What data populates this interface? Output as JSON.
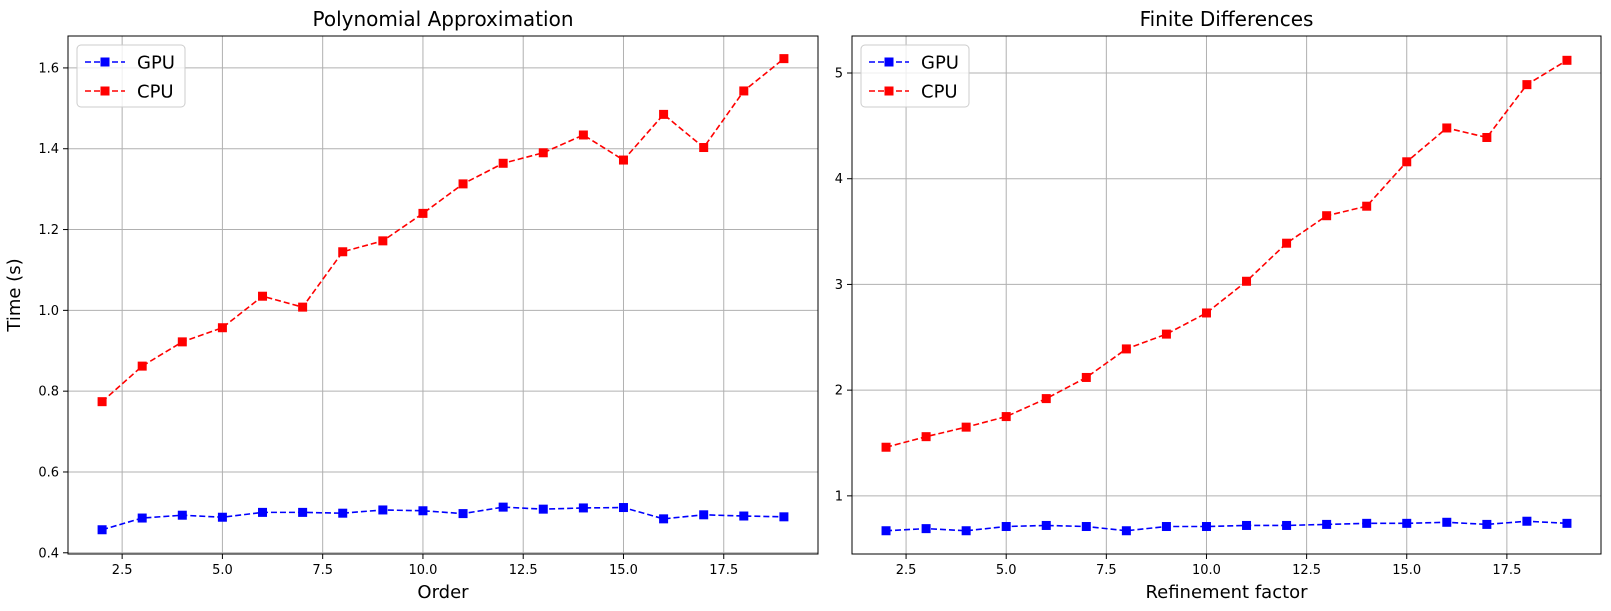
{
  "chart_data": [
    {
      "type": "line",
      "title": "Polynomial Approximation",
      "xlabel": "Order",
      "ylabel": "Time (s)",
      "xlim": [
        1.15,
        19.85
      ],
      "ylim": [
        0.397,
        1.679
      ],
      "xticks": [
        2.5,
        5.0,
        7.5,
        10.0,
        12.5,
        15.0,
        17.5
      ],
      "xtick_labels": [
        "2.5",
        "5.0",
        "7.5",
        "10.0",
        "12.5",
        "15.0",
        "17.5"
      ],
      "yticks": [
        0.4,
        0.6,
        0.8,
        1.0,
        1.2,
        1.4,
        1.6
      ],
      "ytick_labels": [
        "0.4",
        "0.6",
        "0.8",
        "1.0",
        "1.2",
        "1.4",
        "1.6"
      ],
      "grid": true,
      "legend_position": "top-left",
      "x": [
        2,
        3,
        4,
        5,
        6,
        7,
        8,
        9,
        10,
        11,
        12,
        13,
        14,
        15,
        16,
        17,
        18,
        19
      ],
      "series": [
        {
          "name": "GPU",
          "color": "#0000ff",
          "marker": "square",
          "linestyle": "dashed",
          "values": [
            0.457,
            0.486,
            0.493,
            0.488,
            0.5,
            0.5,
            0.498,
            0.506,
            0.504,
            0.497,
            0.513,
            0.508,
            0.511,
            0.512,
            0.484,
            0.494,
            0.491,
            0.489
          ]
        },
        {
          "name": "CPU",
          "color": "#ff0000",
          "marker": "square",
          "linestyle": "dashed",
          "values": [
            0.774,
            0.862,
            0.922,
            0.957,
            1.035,
            1.008,
            1.145,
            1.172,
            1.24,
            1.313,
            1.364,
            1.39,
            1.434,
            1.372,
            1.485,
            1.403,
            1.543,
            1.623
          ]
        }
      ]
    },
    {
      "type": "line",
      "title": "Finite Differences",
      "xlabel": "Refinement factor",
      "ylabel": "",
      "xlim": [
        1.15,
        19.85
      ],
      "ylim": [
        0.45,
        5.35
      ],
      "xticks": [
        2.5,
        5.0,
        7.5,
        10.0,
        12.5,
        15.0,
        17.5
      ],
      "xtick_labels": [
        "2.5",
        "5.0",
        "7.5",
        "10.0",
        "12.5",
        "15.0",
        "17.5"
      ],
      "yticks": [
        1,
        2,
        3,
        4,
        5
      ],
      "ytick_labels": [
        "1",
        "2",
        "3",
        "4",
        "5"
      ],
      "grid": true,
      "legend_position": "top-left",
      "x": [
        2,
        3,
        4,
        5,
        6,
        7,
        8,
        9,
        10,
        11,
        12,
        13,
        14,
        15,
        16,
        17,
        18,
        19
      ],
      "series": [
        {
          "name": "GPU",
          "color": "#0000ff",
          "marker": "square",
          "linestyle": "dashed",
          "values": [
            0.67,
            0.69,
            0.67,
            0.71,
            0.72,
            0.71,
            0.67,
            0.71,
            0.71,
            0.72,
            0.72,
            0.73,
            0.74,
            0.74,
            0.75,
            0.73,
            0.76,
            0.74
          ]
        },
        {
          "name": "CPU",
          "color": "#ff0000",
          "marker": "square",
          "linestyle": "dashed",
          "values": [
            1.46,
            1.56,
            1.65,
            1.75,
            1.92,
            2.12,
            2.39,
            2.53,
            2.73,
            3.03,
            3.39,
            3.65,
            3.74,
            4.16,
            4.48,
            4.39,
            4.89,
            5.12
          ]
        }
      ]
    }
  ]
}
